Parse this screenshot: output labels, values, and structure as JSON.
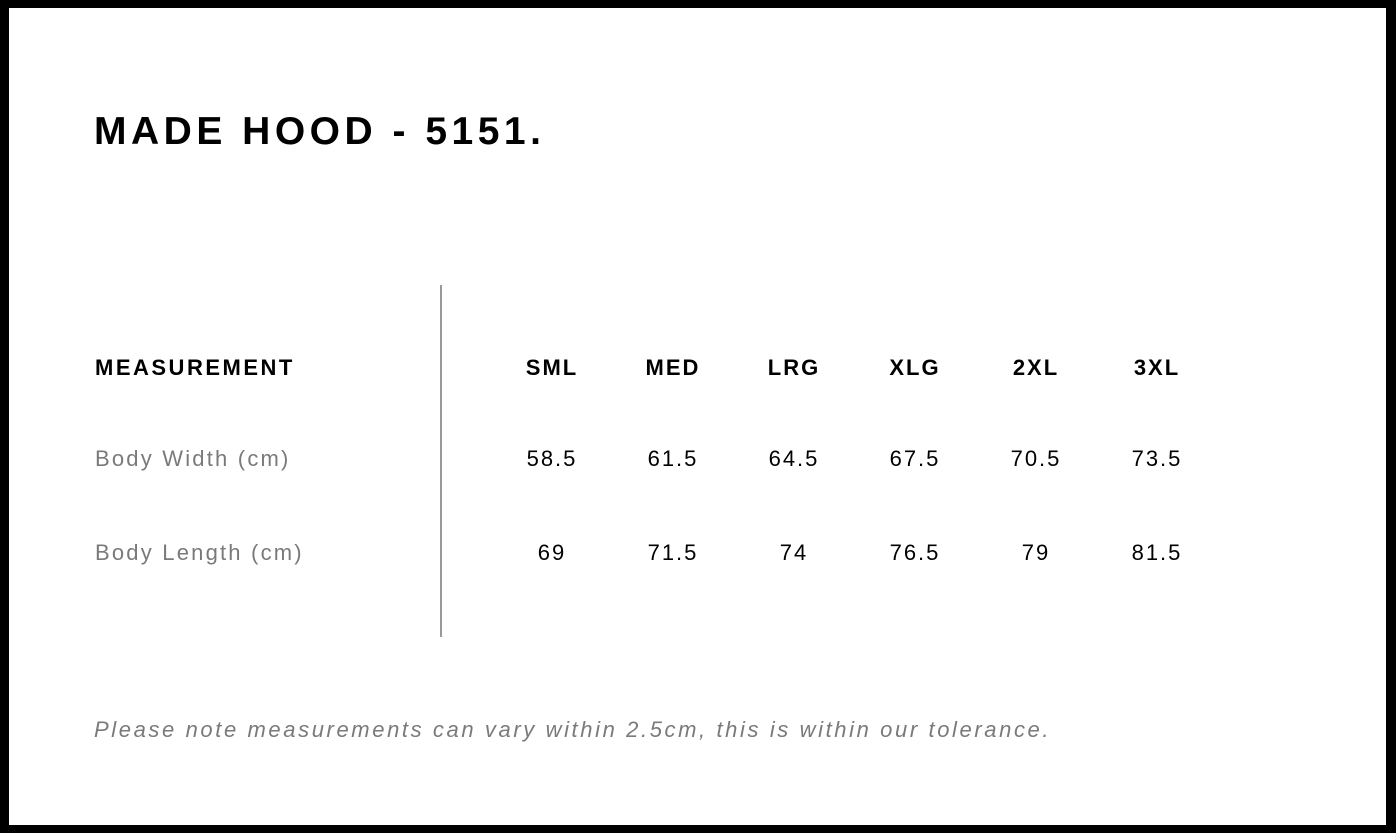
{
  "title": "MADE HOOD - 5151.",
  "table": {
    "header": [
      "MEASUREMENT",
      "SML",
      "MED",
      "LRG",
      "XLG",
      "2XL",
      "3XL"
    ],
    "rows": [
      [
        "Body Width (cm)",
        "58.5",
        "61.5",
        "64.5",
        "67.5",
        "70.5",
        "73.5"
      ],
      [
        "Body Length (cm)",
        "69",
        "71.5",
        "74",
        "76.5",
        "79",
        "81.5"
      ]
    ]
  },
  "note": "Please note measurements can vary within 2.5cm, this is within our tolerance."
}
